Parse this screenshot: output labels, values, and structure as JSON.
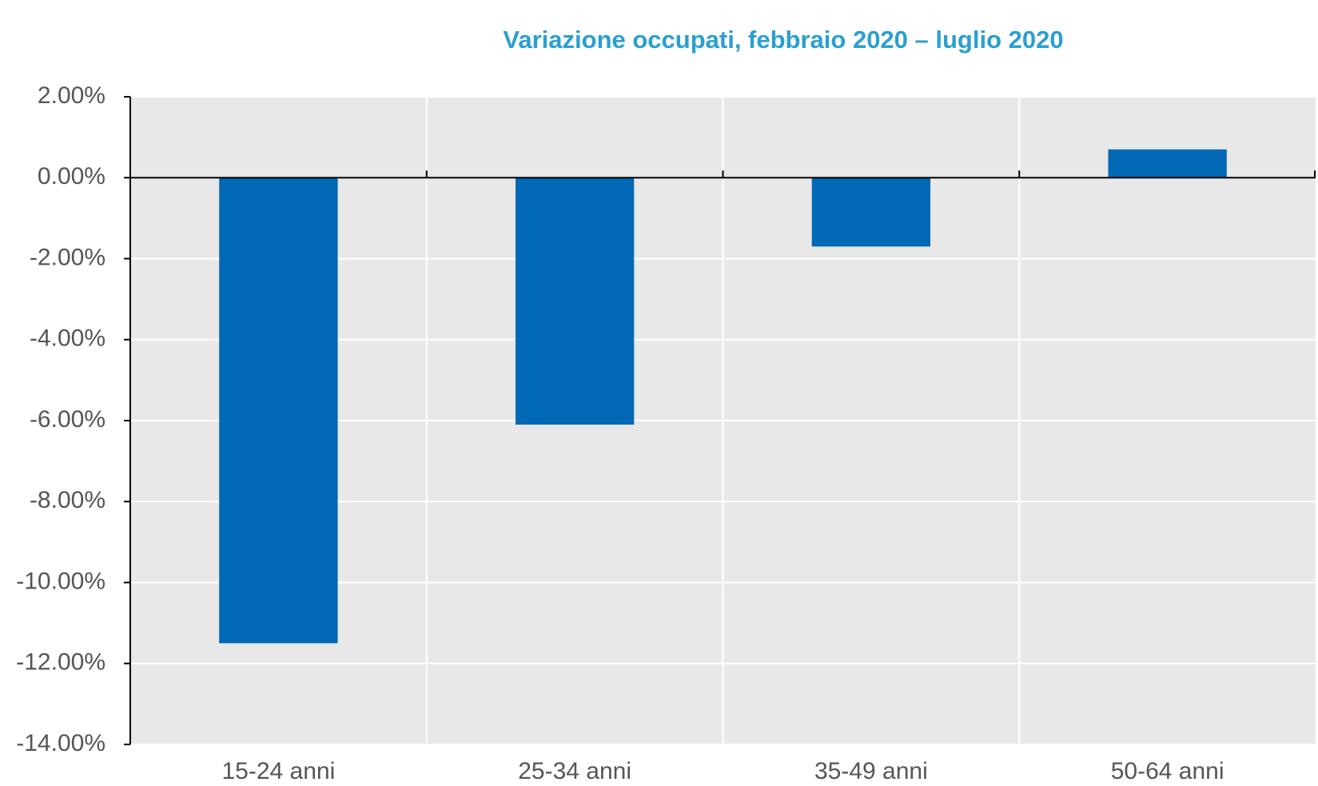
{
  "chart_data": {
    "type": "bar",
    "title": "Variazione occupati, febbraio 2020 – luglio 2020",
    "categories": [
      "15-24 anni",
      "25-34 anni",
      "35-49 anni",
      "50-64 anni"
    ],
    "values": [
      -11.5,
      -6.1,
      -1.7,
      0.7
    ],
    "color": "#0068b4",
    "ylim": [
      -14,
      2
    ],
    "yticks": [
      {
        "value": 2,
        "label": "2.00%"
      },
      {
        "value": 0,
        "label": "0.00%"
      },
      {
        "value": -2,
        "label": "-2.00%"
      },
      {
        "value": -4,
        "label": "-4.00%"
      },
      {
        "value": -6,
        "label": "-6.00%"
      },
      {
        "value": -8,
        "label": "-8.00%"
      },
      {
        "value": -10,
        "label": "-10.00%"
      },
      {
        "value": -12,
        "label": "-12.00%"
      },
      {
        "value": -14,
        "label": "-14.00%"
      }
    ],
    "grid": true
  }
}
